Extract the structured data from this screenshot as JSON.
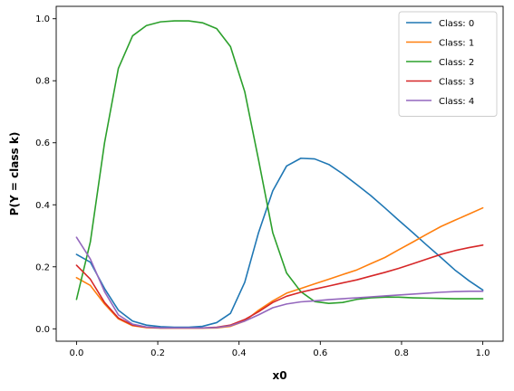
{
  "chart_data": {
    "type": "line",
    "title": "",
    "xlabel": "x0",
    "ylabel": "P(Y = class k)",
    "xlim": [
      -0.05,
      1.05
    ],
    "ylim": [
      -0.04,
      1.04
    ],
    "xticks": [
      0.0,
      0.2,
      0.4,
      0.6,
      0.8,
      1.0
    ],
    "xtick_labels": [
      "0.0",
      "0.2",
      "0.4",
      "0.6",
      "0.8",
      "1.0"
    ],
    "yticks": [
      0.0,
      0.2,
      0.4,
      0.6,
      0.8,
      1.0
    ],
    "ytick_labels": [
      "0.0",
      "0.2",
      "0.4",
      "0.6",
      "0.8",
      "1.0"
    ],
    "grid": false,
    "legend_position": "top-right",
    "x": [
      0.0,
      0.034,
      0.069,
      0.103,
      0.138,
      0.172,
      0.207,
      0.241,
      0.276,
      0.31,
      0.345,
      0.379,
      0.414,
      0.448,
      0.483,
      0.517,
      0.552,
      0.586,
      0.621,
      0.655,
      0.69,
      0.724,
      0.759,
      0.793,
      0.828,
      0.862,
      0.897,
      0.931,
      0.966,
      1.0
    ],
    "series": [
      {
        "name": "Class: 0",
        "color": "#1f77b4",
        "values": [
          0.24,
          0.215,
          0.13,
          0.06,
          0.025,
          0.012,
          0.007,
          0.005,
          0.005,
          0.008,
          0.02,
          0.05,
          0.15,
          0.31,
          0.445,
          0.525,
          0.55,
          0.548,
          0.53,
          0.5,
          0.465,
          0.43,
          0.39,
          0.35,
          0.31,
          0.27,
          0.23,
          0.19,
          0.155,
          0.125
        ]
      },
      {
        "name": "Class: 1",
        "color": "#ff7f0e",
        "values": [
          0.165,
          0.14,
          0.08,
          0.032,
          0.01,
          0.004,
          0.002,
          0.002,
          0.002,
          0.002,
          0.003,
          0.008,
          0.025,
          0.06,
          0.09,
          0.115,
          0.13,
          0.145,
          0.16,
          0.175,
          0.19,
          0.21,
          0.23,
          0.255,
          0.28,
          0.305,
          0.33,
          0.35,
          0.37,
          0.39
        ]
      },
      {
        "name": "Class: 2",
        "color": "#2ca02c",
        "values": [
          0.095,
          0.28,
          0.6,
          0.84,
          0.945,
          0.978,
          0.99,
          0.993,
          0.993,
          0.987,
          0.968,
          0.91,
          0.765,
          0.545,
          0.31,
          0.18,
          0.12,
          0.088,
          0.082,
          0.085,
          0.095,
          0.1,
          0.102,
          0.102,
          0.1,
          0.099,
          0.098,
          0.097,
          0.097,
          0.097
        ]
      },
      {
        "name": "Class: 3",
        "color": "#d62728",
        "values": [
          0.205,
          0.16,
          0.085,
          0.035,
          0.012,
          0.005,
          0.003,
          0.003,
          0.003,
          0.003,
          0.005,
          0.012,
          0.03,
          0.055,
          0.085,
          0.105,
          0.118,
          0.128,
          0.138,
          0.148,
          0.158,
          0.17,
          0.182,
          0.195,
          0.21,
          0.225,
          0.24,
          0.252,
          0.262,
          0.27
        ]
      },
      {
        "name": "Class: 4",
        "color": "#9467bd",
        "values": [
          0.295,
          0.225,
          0.12,
          0.045,
          0.015,
          0.006,
          0.003,
          0.003,
          0.003,
          0.003,
          0.004,
          0.01,
          0.025,
          0.045,
          0.068,
          0.08,
          0.087,
          0.09,
          0.094,
          0.097,
          0.1,
          0.103,
          0.106,
          0.109,
          0.112,
          0.115,
          0.118,
          0.12,
          0.121,
          0.121
        ]
      }
    ]
  }
}
